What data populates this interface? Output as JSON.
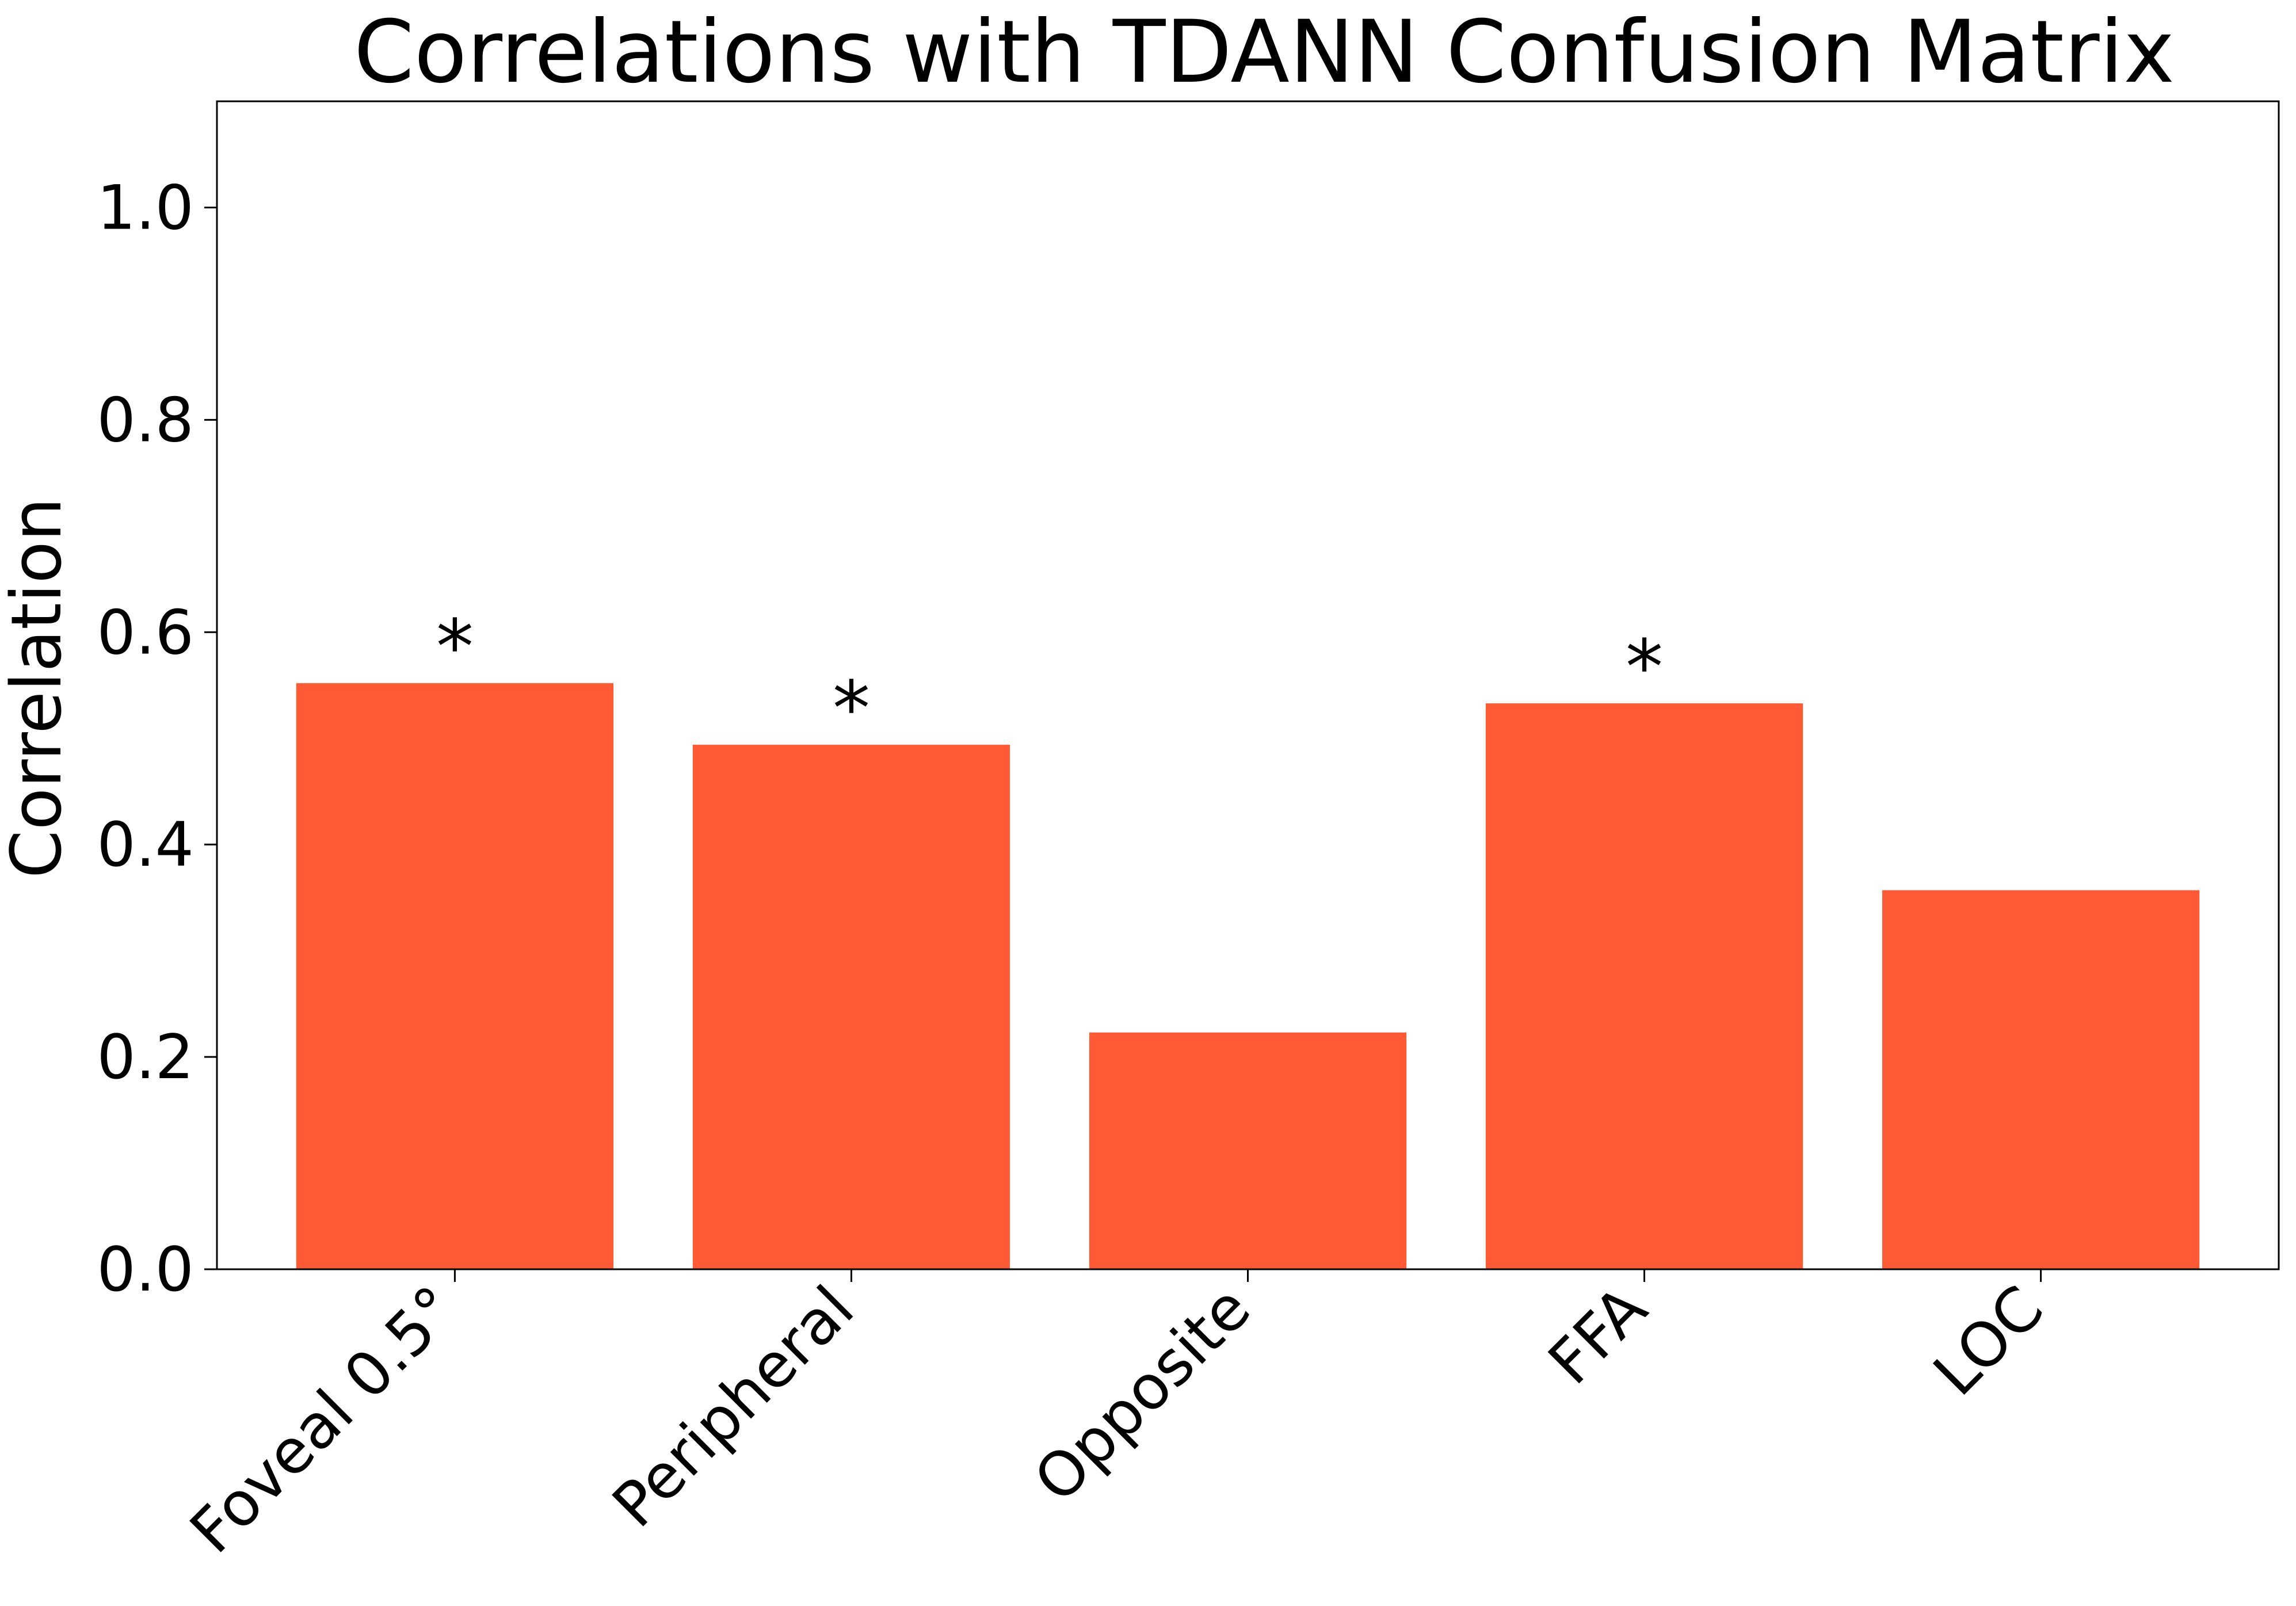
{
  "chart_data": {
    "type": "bar",
    "title": "Correlations with TDANN Confusion Matrix",
    "xlabel": "",
    "ylabel": "Correlation",
    "categories": [
      "Foveal 0.5°",
      "Peripheral",
      "Opposite",
      "FFA",
      "LOC"
    ],
    "values": [
      0.552,
      0.494,
      0.223,
      0.533,
      0.357
    ],
    "significance": [
      "*",
      "*",
      "",
      "*",
      ""
    ],
    "ylim": [
      0,
      1.1
    ],
    "yticks": [
      0.0,
      0.2,
      0.4,
      0.6,
      0.8,
      1.0
    ],
    "ytick_labels": [
      "0.0",
      "0.2",
      "0.4",
      "0.6",
      "0.8",
      "1.0"
    ],
    "grid": false,
    "bar_color": "#ff5a36"
  }
}
